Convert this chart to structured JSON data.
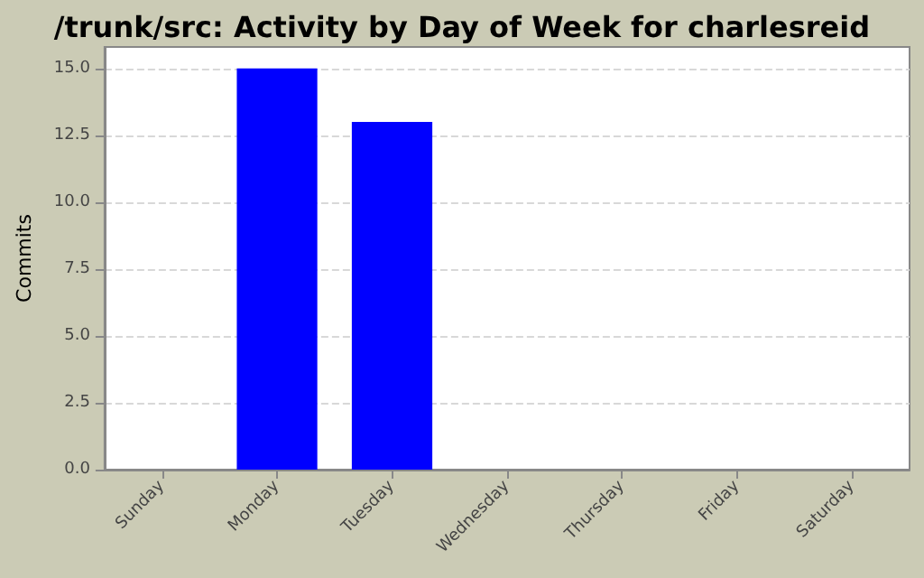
{
  "chart_data": {
    "type": "bar",
    "title": "/trunk/src: Activity by Day of Week for charlesreid",
    "ylabel": "Commits",
    "categories": [
      "Sunday",
      "Monday",
      "Tuesday",
      "Wednesday",
      "Thursday",
      "Friday",
      "Saturday"
    ],
    "values": [
      0,
      15,
      13,
      0,
      0,
      0,
      0
    ],
    "color": "#0000ff",
    "ylim": [
      0,
      15.8
    ],
    "yticks": [
      {
        "value": 0,
        "label": "0.0"
      },
      {
        "value": 2.5,
        "label": "2.5"
      },
      {
        "value": 5,
        "label": "5.0"
      },
      {
        "value": 7.5,
        "label": "7.5"
      },
      {
        "value": 10,
        "label": "10.0"
      },
      {
        "value": 12.5,
        "label": "12.5"
      },
      {
        "value": 15,
        "label": "15.0"
      }
    ],
    "grid": "y"
  }
}
